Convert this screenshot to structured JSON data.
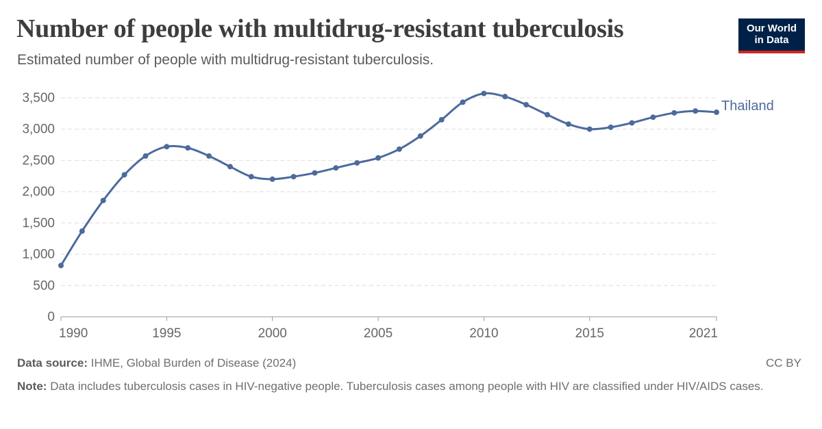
{
  "header": {
    "title": "Number of people with multidrug-resistant tuberculosis",
    "subtitle": "Estimated number of people with multidrug-resistant tuberculosis."
  },
  "logo": {
    "line1": "Our World",
    "line2": "in Data"
  },
  "footer": {
    "source_label": "Data source:",
    "source_text": "IHME, Global Burden of Disease (2024)",
    "license": "CC BY",
    "note_label": "Note:",
    "note_text": "Data includes tuberculosis cases in HIV-negative people. Tuberculosis cases among people with HIV are classified under HIV/AIDS cases."
  },
  "chart_data": {
    "type": "line",
    "x": [
      1990,
      1991,
      1992,
      1993,
      1994,
      1995,
      1996,
      1997,
      1998,
      1999,
      2000,
      2001,
      2002,
      2003,
      2004,
      2005,
      2006,
      2007,
      2008,
      2009,
      2010,
      2011,
      2012,
      2013,
      2014,
      2015,
      2016,
      2017,
      2018,
      2019,
      2020,
      2021
    ],
    "series": [
      {
        "name": "Thailand",
        "color": "#4c6a9c",
        "values": [
          820,
          1370,
          1860,
          2270,
          2570,
          2720,
          2700,
          2570,
          2400,
          2240,
          2200,
          2240,
          2300,
          2380,
          2460,
          2540,
          2680,
          2890,
          3150,
          3430,
          3570,
          3520,
          3390,
          3230,
          3080,
          3000,
          3030,
          3100,
          3190,
          3260,
          3290,
          3270
        ]
      }
    ],
    "xlim": [
      1990,
      2021
    ],
    "ylim": [
      0,
      3500
    ],
    "yticks": [
      0,
      500,
      1000,
      1500,
      2000,
      2500,
      3000,
      3500
    ],
    "ytick_labels": [
      "0",
      "500",
      "1,000",
      "1,500",
      "2,000",
      "2,500",
      "3,000",
      "3,500"
    ],
    "xticks": [
      1990,
      1995,
      2000,
      2005,
      2010,
      2015,
      2021
    ],
    "xtick_labels": [
      "1990",
      "1995",
      "2000",
      "2005",
      "2010",
      "2015",
      "2021"
    ],
    "grid": "horizontal-dashed",
    "legend": "inline-end-label"
  }
}
